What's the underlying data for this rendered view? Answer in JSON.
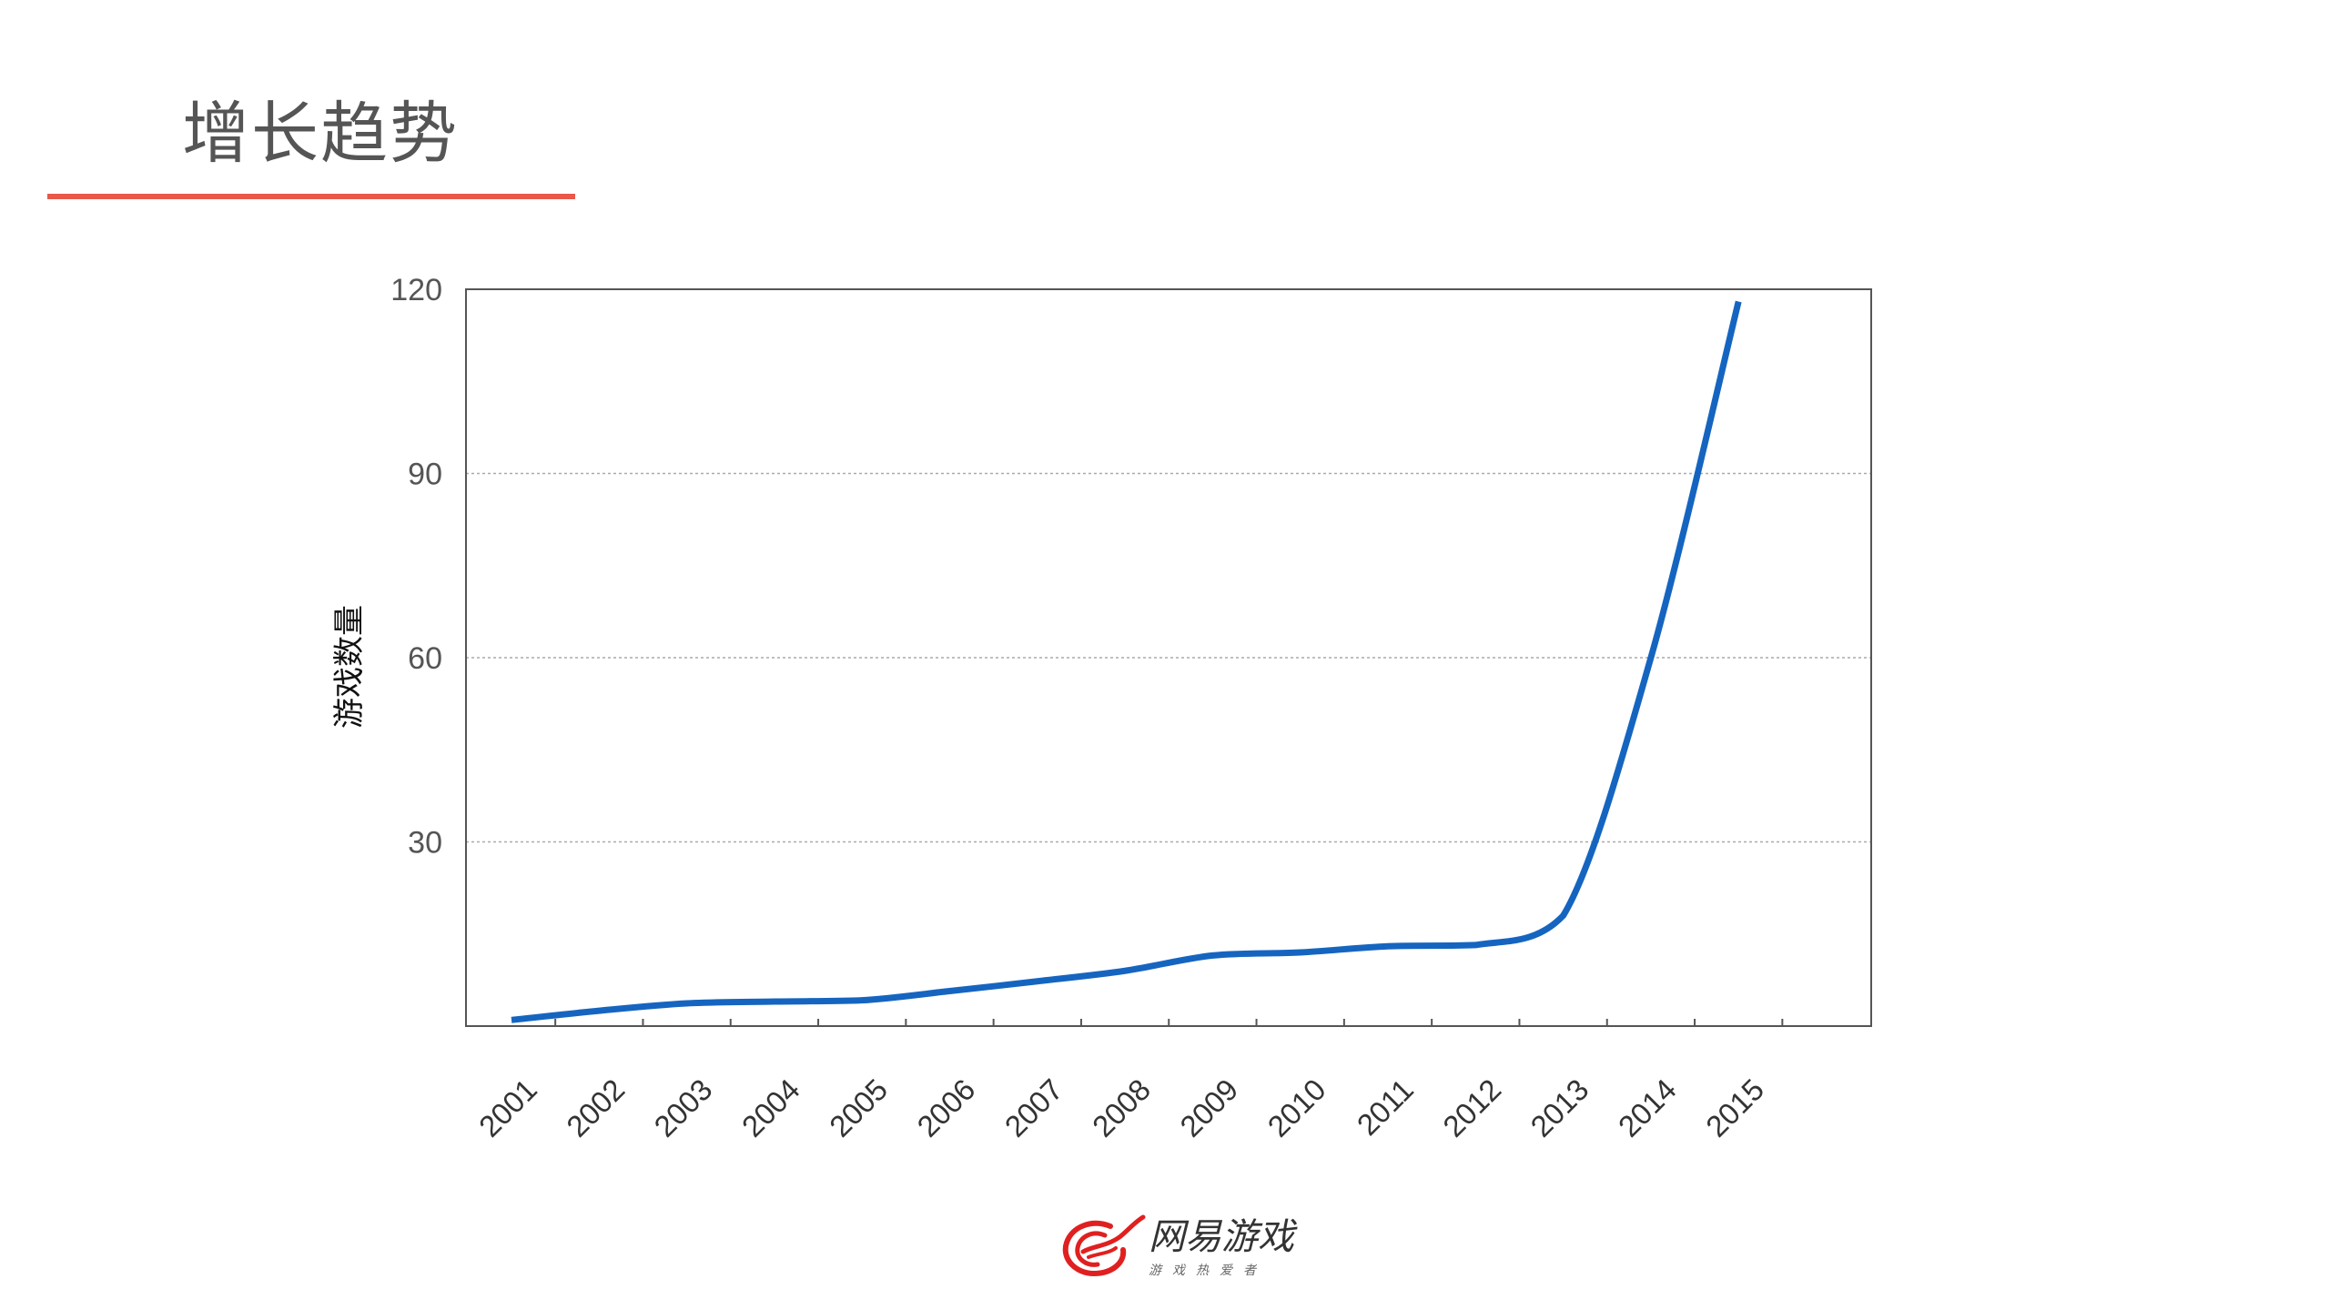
{
  "page": {
    "title": "增长趋势"
  },
  "colors": {
    "accent_underline": "#e8584b",
    "series_line": "#1565c0",
    "gridline": "#aaaaaa",
    "logo_red": "#e02020"
  },
  "logo": {
    "name": "网易游戏",
    "tagline": "游戏热爱者",
    "icon": "netease-games-logo-icon"
  },
  "chart_data": {
    "type": "line",
    "title": "",
    "xlabel": "",
    "ylabel": "游戏数量",
    "categories": [
      "2001",
      "2002",
      "2003",
      "2004",
      "2005",
      "2006",
      "2007",
      "2008",
      "2009",
      "2010",
      "2011",
      "2012",
      "2013",
      "2014",
      "2015"
    ],
    "yticks": [
      "30",
      "60",
      "90",
      "120"
    ],
    "ylim": [
      0,
      120
    ],
    "grid": "horizontal-dotted",
    "series": [
      {
        "values": [
          1,
          2.5,
          3.7,
          4,
          4.2,
          5.7,
          7.3,
          9,
          11.5,
          12,
          13,
          13.2,
          18,
          60,
          118
        ]
      }
    ]
  }
}
